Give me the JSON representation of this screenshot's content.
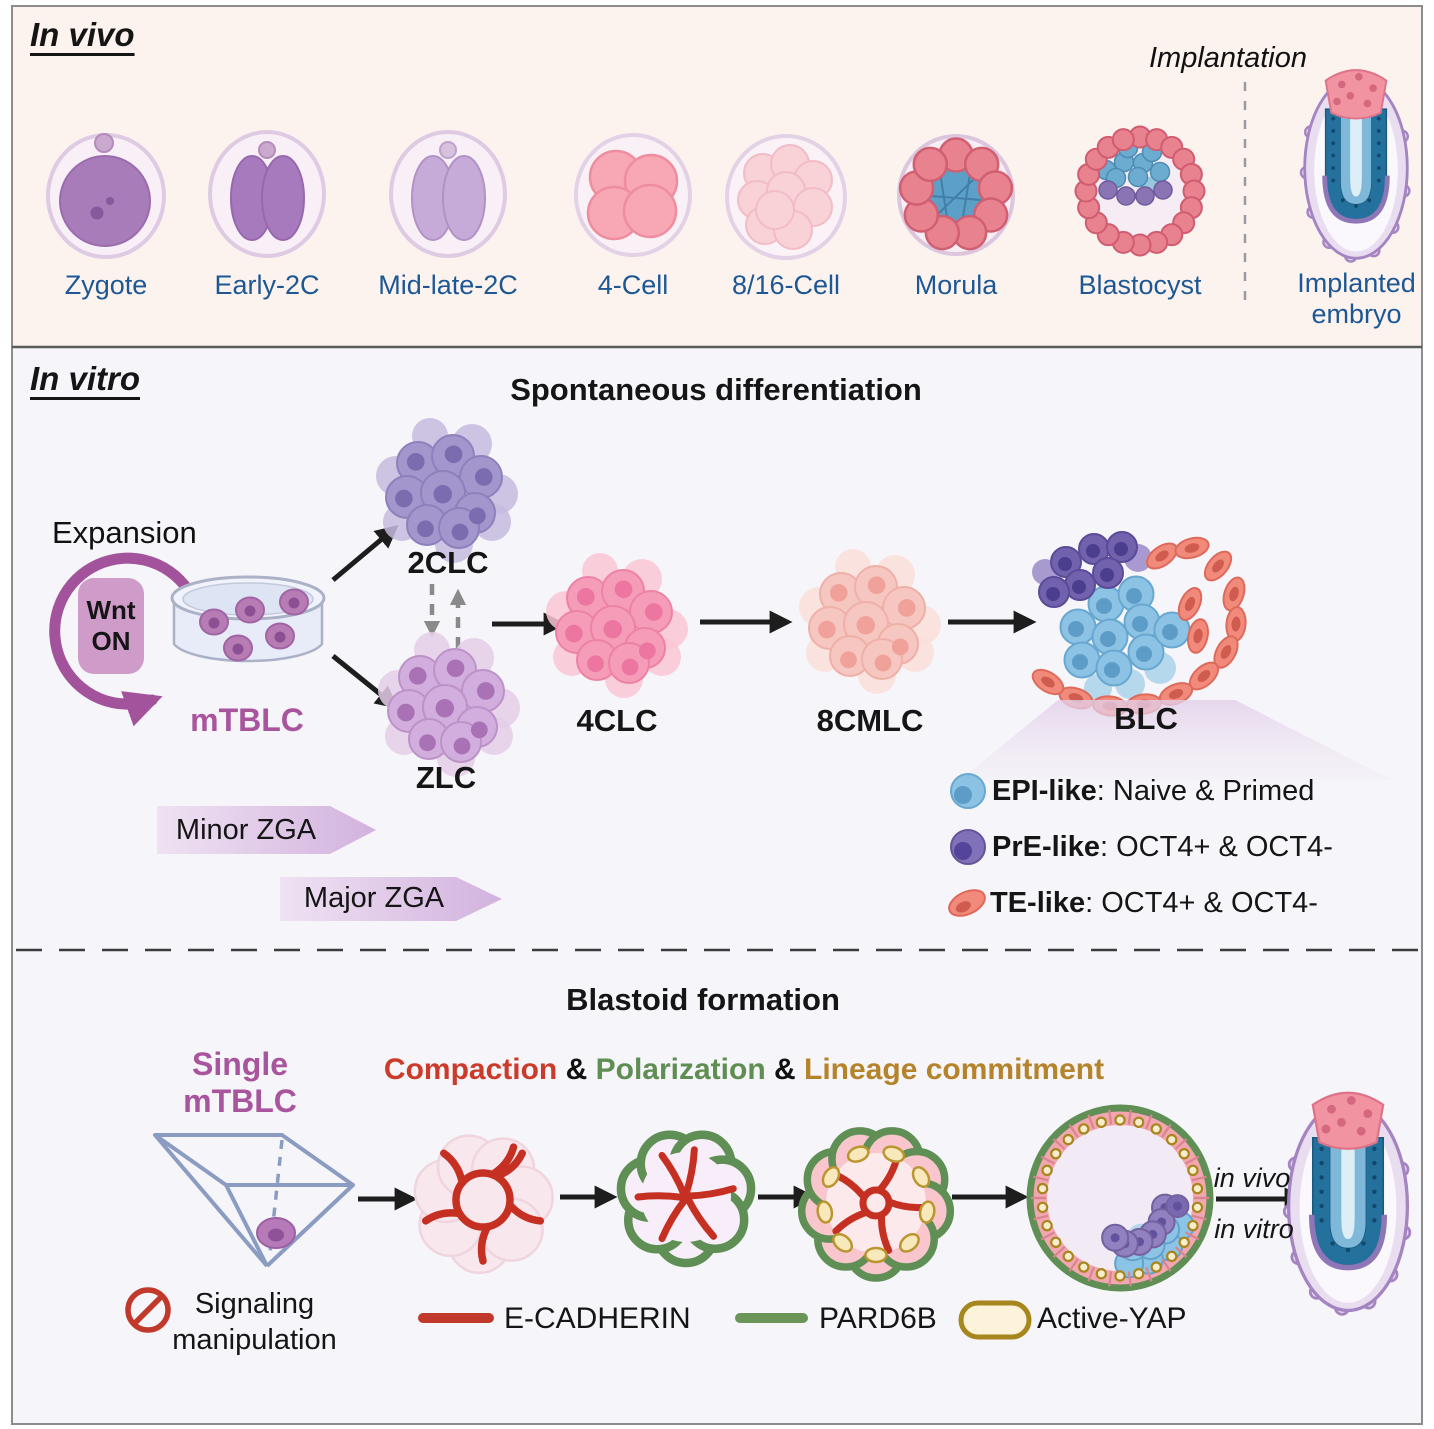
{
  "figure": {
    "in_vivo": {
      "title": "In vivo",
      "implantation": "Implantation",
      "stages": [
        "Zygote",
        "Early-2C",
        "Mid-late-2C",
        "4-Cell",
        "8/16-Cell",
        "Morula",
        "Blastocyst",
        "Implanted embryo"
      ]
    },
    "in_vitro": {
      "title": "In vitro",
      "heading": "Spontaneous differentiation",
      "expansion": "Expansion",
      "wnt_line1": "Wnt",
      "wnt_line2": "ON",
      "mtblc": "mTBLC",
      "cluster_2clc": "2CLC",
      "cluster_zlc": "ZLC",
      "cluster_4clc": "4CLC",
      "cluster_8cmlc": "8CMLC",
      "cluster_blc": "BLC",
      "minor_zga": "Minor ZGA",
      "major_zga": "Major ZGA",
      "legend": [
        {
          "term": "EPI-like",
          "desc": ": Naive & Primed"
        },
        {
          "term": "PrE-like",
          "desc": ": OCT4+ & OCT4-"
        },
        {
          "term": "TE-like",
          "desc": ": OCT4+ & OCT4-"
        }
      ]
    },
    "blastoid": {
      "heading": "Blastoid formation",
      "single_line1": "Single",
      "single_line2": "mTBLC",
      "compaction": "Compaction",
      "amp1": "&",
      "polarization": "Polarization",
      "amp2": "&",
      "lineage": "Lineage commitment",
      "signaling_line1": "Signaling",
      "signaling_line2": "manipulation",
      "legend_ecadherin": "E-CADHERIN",
      "legend_pard6b": "PARD6B",
      "legend_activeyap": "Active-YAP",
      "in_vivo_label": "in vivo",
      "in_vitro_label": "in vitro"
    },
    "colors": {
      "stage_label_blue": "#1d5794",
      "mtblc_purple": "#a8559e",
      "wnt_box": "#cf9cca",
      "expansion_arrow": "#a3539b",
      "compaction_red": "#cc3a2a",
      "polarization_green": "#5e8e52",
      "lineage_gold": "#b5832a",
      "ecadherin_red": "#c0392b",
      "pard6b_green": "#6a9458",
      "activeyap_gold": "#a8861e",
      "epi_blue": "#8cc2e4",
      "pre_purple": "#7262ae",
      "te_salmon": "#f28a7c"
    }
  }
}
